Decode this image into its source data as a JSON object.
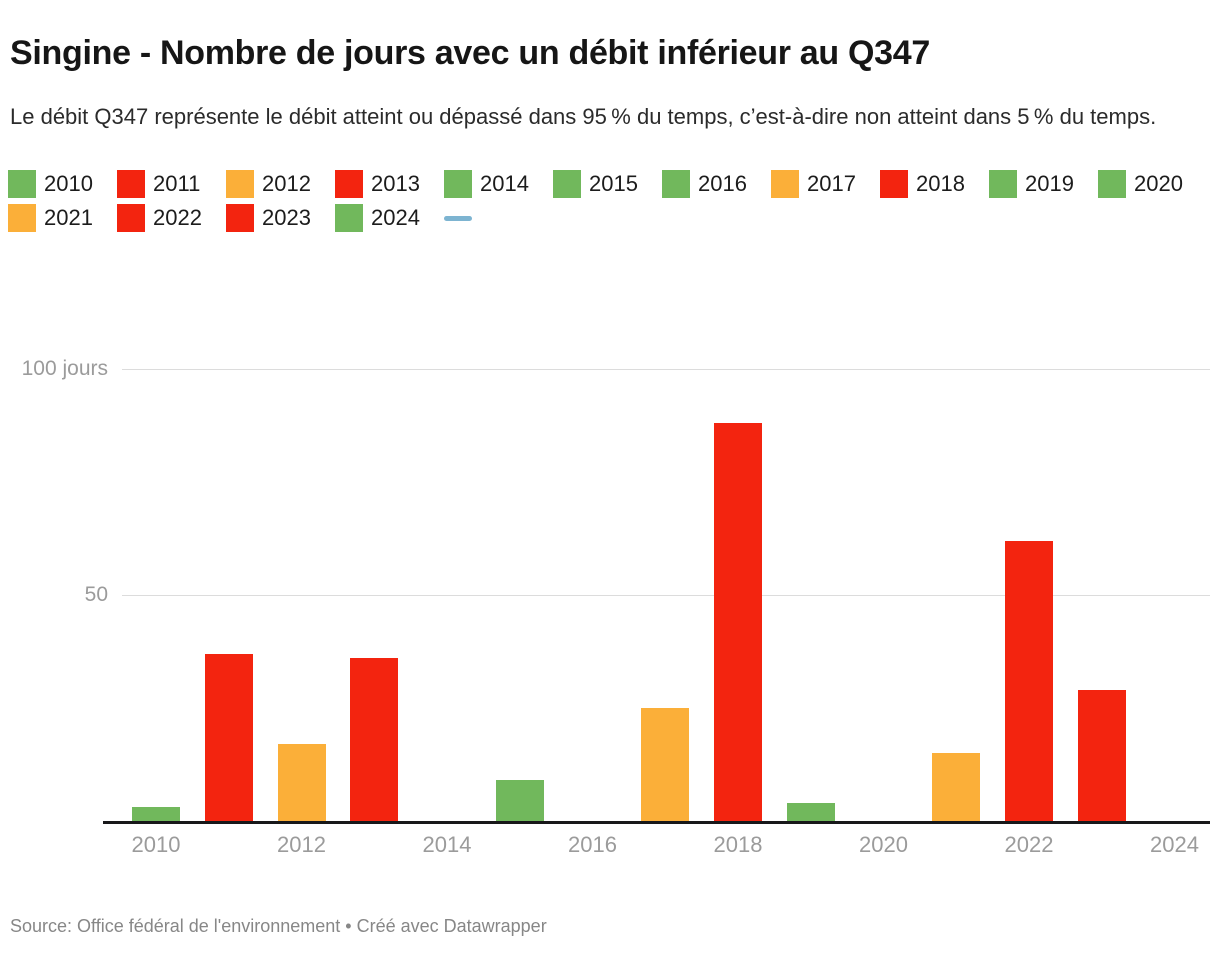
{
  "header": {
    "title": "Singine - Nombre de jours avec un débit inférieur au Q347",
    "subtitle": "Le débit Q347 représente le débit atteint ou dépassé dans 95 % du temps, c’est-à-dire non atteint dans 5 % du temps."
  },
  "colors": {
    "green": "#71b85c",
    "red": "#f3240f",
    "orange": "#fbaf39",
    "blue_line": "#7db4d1",
    "grid": "#dcdcdc",
    "axis": "#18181a",
    "tick_text": "#9b9b9b"
  },
  "legend": {
    "items": [
      {
        "label": "2010",
        "color_key": "green"
      },
      {
        "label": "2011",
        "color_key": "red"
      },
      {
        "label": "2012",
        "color_key": "orange"
      },
      {
        "label": "2013",
        "color_key": "red"
      },
      {
        "label": "2014",
        "color_key": "green"
      },
      {
        "label": "2015",
        "color_key": "green"
      },
      {
        "label": "2016",
        "color_key": "green"
      },
      {
        "label": "2017",
        "color_key": "orange"
      },
      {
        "label": "2018",
        "color_key": "red"
      },
      {
        "label": "2019",
        "color_key": "green"
      },
      {
        "label": "2020",
        "color_key": "green"
      },
      {
        "label": "2021",
        "color_key": "orange"
      },
      {
        "label": "2022",
        "color_key": "red"
      },
      {
        "label": "2023",
        "color_key": "red"
      },
      {
        "label": "2024",
        "color_key": "green"
      }
    ],
    "line_swatch": {
      "label": "",
      "color_key": "blue_line"
    }
  },
  "chart_data": {
    "type": "bar",
    "title": "Singine - Nombre de jours avec un débit inférieur au Q347",
    "xlabel": "",
    "ylabel": "jours",
    "categories": [
      2010,
      2011,
      2012,
      2013,
      2014,
      2015,
      2016,
      2017,
      2018,
      2019,
      2020,
      2021,
      2022,
      2023,
      2024
    ],
    "values": [
      3,
      37,
      17,
      36,
      0,
      9,
      0,
      25,
      88,
      4,
      0,
      15,
      62,
      29,
      0
    ],
    "bar_color_keys": [
      "green",
      "red",
      "orange",
      "red",
      "green",
      "green",
      "green",
      "orange",
      "red",
      "green",
      "green",
      "orange",
      "red",
      "red",
      "green"
    ],
    "y_ticks": [
      {
        "value": 50,
        "label": "50"
      },
      {
        "value": 100,
        "label": "100 jours"
      }
    ],
    "x_ticks": [
      "2010",
      "2012",
      "2014",
      "2016",
      "2018",
      "2020",
      "2022",
      "2024"
    ],
    "ylim": [
      0,
      105
    ],
    "grid": "horizontal",
    "legend_position": "top"
  },
  "footer": {
    "source": "Source: Office fédéral de l'environnement • Créé avec Datawrapper"
  }
}
